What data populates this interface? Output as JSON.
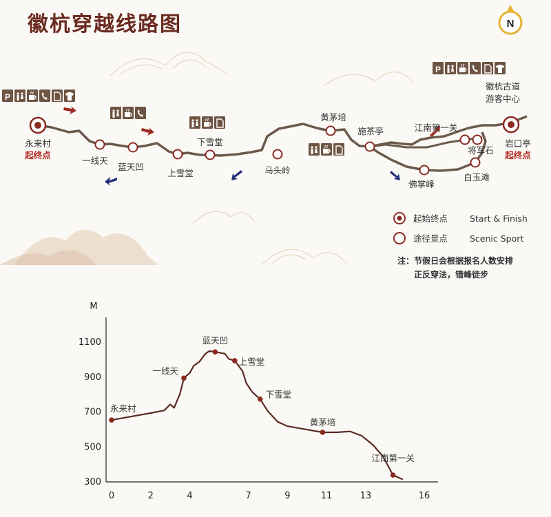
{
  "title": "徽杭穿越线路图",
  "compass_letter": "N",
  "map": {
    "endpoints": [
      {
        "label": "永来村",
        "sub": "起终点"
      },
      {
        "label": "岩口亭",
        "sub": "起终点"
      }
    ],
    "stops": [
      "一线天",
      "蓝天凹",
      "上雪堂",
      "下雪堂",
      "马头岭",
      "黄茅培",
      "施茶亭",
      "佛掌峰",
      "江南第一关",
      "将军石",
      "白玉滩"
    ],
    "visitor_center": "徽杭古道\n游客中心",
    "facilities": {
      "left": [
        "P",
        "toilet",
        "cup",
        "phone",
        "doc",
        "shirt"
      ],
      "second": [
        "toilet",
        "cup",
        "phone"
      ],
      "xiaxuetang": [
        "toilet",
        "cup",
        "doc"
      ],
      "shichating": [
        "toilet",
        "cup",
        "doc"
      ],
      "right": [
        "P",
        "toilet",
        "cup",
        "phone",
        "doc",
        "shirt"
      ]
    }
  },
  "legend": [
    {
      "label": "起始终点",
      "label_en": "Start & Finish"
    },
    {
      "label": "途径景点",
      "label_en": "Scenic Sport"
    }
  ],
  "note": [
    "注：节假日会根据报名人数安排",
    "正反穿法，错峰徒步"
  ],
  "chart_data": {
    "type": "line",
    "ylabel": "M",
    "xlabel": "",
    "x_ticks": [
      0,
      2,
      4,
      7,
      9,
      11,
      13,
      16
    ],
    "y_ticks": [
      300,
      500,
      700,
      900,
      1100
    ],
    "ylim": [
      300,
      1100
    ],
    "points": [
      {
        "name": "永来村",
        "x": 0,
        "y": 650
      },
      {
        "name": "一线天",
        "x": 3.7,
        "y": 890
      },
      {
        "name": "蓝天凹",
        "x": 5.3,
        "y": 1040
      },
      {
        "name": "上雪堂",
        "x": 6.3,
        "y": 990
      },
      {
        "name": "下雪堂",
        "x": 7.6,
        "y": 770
      },
      {
        "name": "黄茅培",
        "x": 10.8,
        "y": 580
      },
      {
        "name": "江南第一关",
        "x": 14.4,
        "y": 335
      }
    ]
  }
}
